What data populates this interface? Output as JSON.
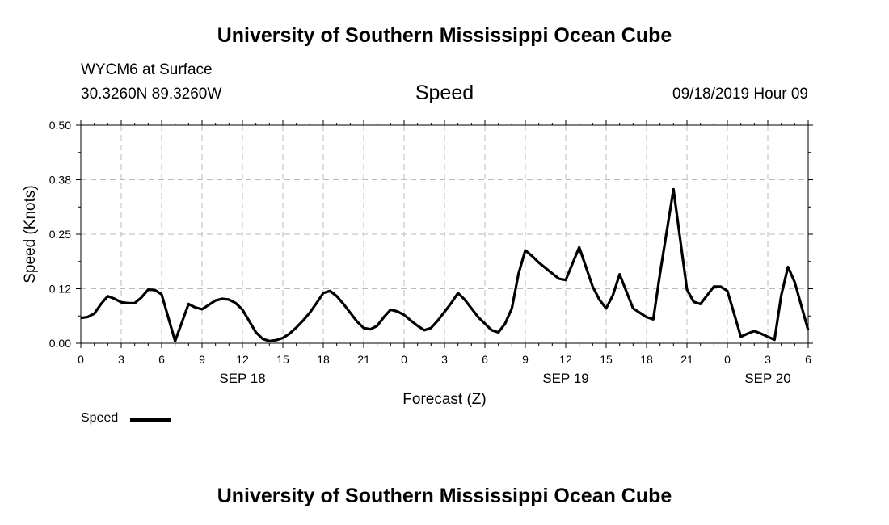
{
  "header": {
    "title_top": "University of Southern Mississippi Ocean Cube",
    "station": "WYCM6 at Surface",
    "coords": "30.3260N 89.3260W",
    "variable": "Speed",
    "datetime": "09/18/2019 Hour 09",
    "title_bottom": "University of Southern Mississippi Ocean Cube"
  },
  "chart_data": {
    "type": "line",
    "title": "Speed",
    "xlabel": "Forecast (Z)",
    "ylabel": "Speed (Knots)",
    "ylim": [
      0,
      0.5
    ],
    "yticks": [
      0.0,
      0.125,
      0.25,
      0.375,
      0.5
    ],
    "ytick_labels": [
      "0.00",
      "0.12",
      "0.25",
      "0.38",
      "0.50"
    ],
    "xlim": [
      0,
      54
    ],
    "xticks": [
      0,
      3,
      6,
      9,
      12,
      15,
      18,
      21,
      24,
      27,
      30,
      33,
      36,
      39,
      42,
      45,
      48,
      51,
      54
    ],
    "xtick_labels": [
      "0",
      "3",
      "6",
      "9",
      "12",
      "15",
      "18",
      "21",
      "0",
      "3",
      "6",
      "9",
      "12",
      "15",
      "18",
      "21",
      "0",
      "3",
      "6"
    ],
    "date_labels": [
      {
        "label": "SEP 18",
        "at_hour": 12
      },
      {
        "label": "SEP 19",
        "at_hour": 36
      },
      {
        "label": "SEP 20",
        "at_hour": 51
      }
    ],
    "grid": true,
    "legend": "bottom-left",
    "series": [
      {
        "name": "Speed",
        "color": "#000000",
        "x": [
          0,
          0.5,
          1,
          1.5,
          2,
          2.5,
          3,
          3.5,
          4,
          4.5,
          5,
          5.5,
          6,
          7,
          8,
          8.5,
          9,
          10,
          10.5,
          11,
          11.5,
          12,
          13,
          13.5,
          14,
          14.5,
          15,
          15.5,
          16,
          16.5,
          17,
          17.5,
          18,
          18.5,
          19,
          19.5,
          20,
          20.5,
          21,
          21.5,
          22,
          22.5,
          23,
          23.5,
          24,
          24.5,
          25,
          25.5,
          26,
          26.5,
          27,
          27.5,
          28,
          28.5,
          29,
          29.5,
          30,
          30.5,
          31,
          31.5,
          32,
          32.5,
          33,
          33.5,
          34,
          35,
          35.5,
          36,
          37,
          38,
          38.5,
          39,
          39.5,
          40,
          41,
          42,
          42.5,
          43,
          44,
          45,
          45.5,
          46,
          47,
          47.5,
          48,
          48.5,
          49,
          49.5,
          50,
          50.5,
          51,
          51.5,
          52,
          52.5,
          53,
          54
        ],
        "values": [
          0.058,
          0.06,
          0.068,
          0.09,
          0.108,
          0.102,
          0.094,
          0.092,
          0.092,
          0.105,
          0.123,
          0.122,
          0.112,
          0.005,
          0.09,
          0.082,
          0.078,
          0.098,
          0.102,
          0.1,
          0.092,
          0.077,
          0.025,
          0.01,
          0.005,
          0.007,
          0.012,
          0.022,
          0.036,
          0.052,
          0.07,
          0.092,
          0.115,
          0.12,
          0.108,
          0.09,
          0.07,
          0.05,
          0.035,
          0.032,
          0.04,
          0.06,
          0.077,
          0.073,
          0.065,
          0.052,
          0.04,
          0.03,
          0.035,
          0.052,
          0.072,
          0.092,
          0.115,
          0.1,
          0.08,
          0.06,
          0.045,
          0.03,
          0.025,
          0.045,
          0.08,
          0.16,
          0.213,
          0.2,
          0.185,
          0.16,
          0.148,
          0.145,
          0.22,
          0.13,
          0.1,
          0.08,
          0.11,
          0.158,
          0.08,
          0.06,
          0.055,
          0.16,
          0.353,
          0.123,
          0.095,
          0.09,
          0.13,
          0.13,
          0.12,
          0.068,
          0.015,
          0.022,
          0.028,
          0.022,
          0.015,
          0.008,
          0.11,
          0.175,
          0.14,
          0.03
        ]
      }
    ]
  },
  "legend": {
    "label": "Speed"
  }
}
